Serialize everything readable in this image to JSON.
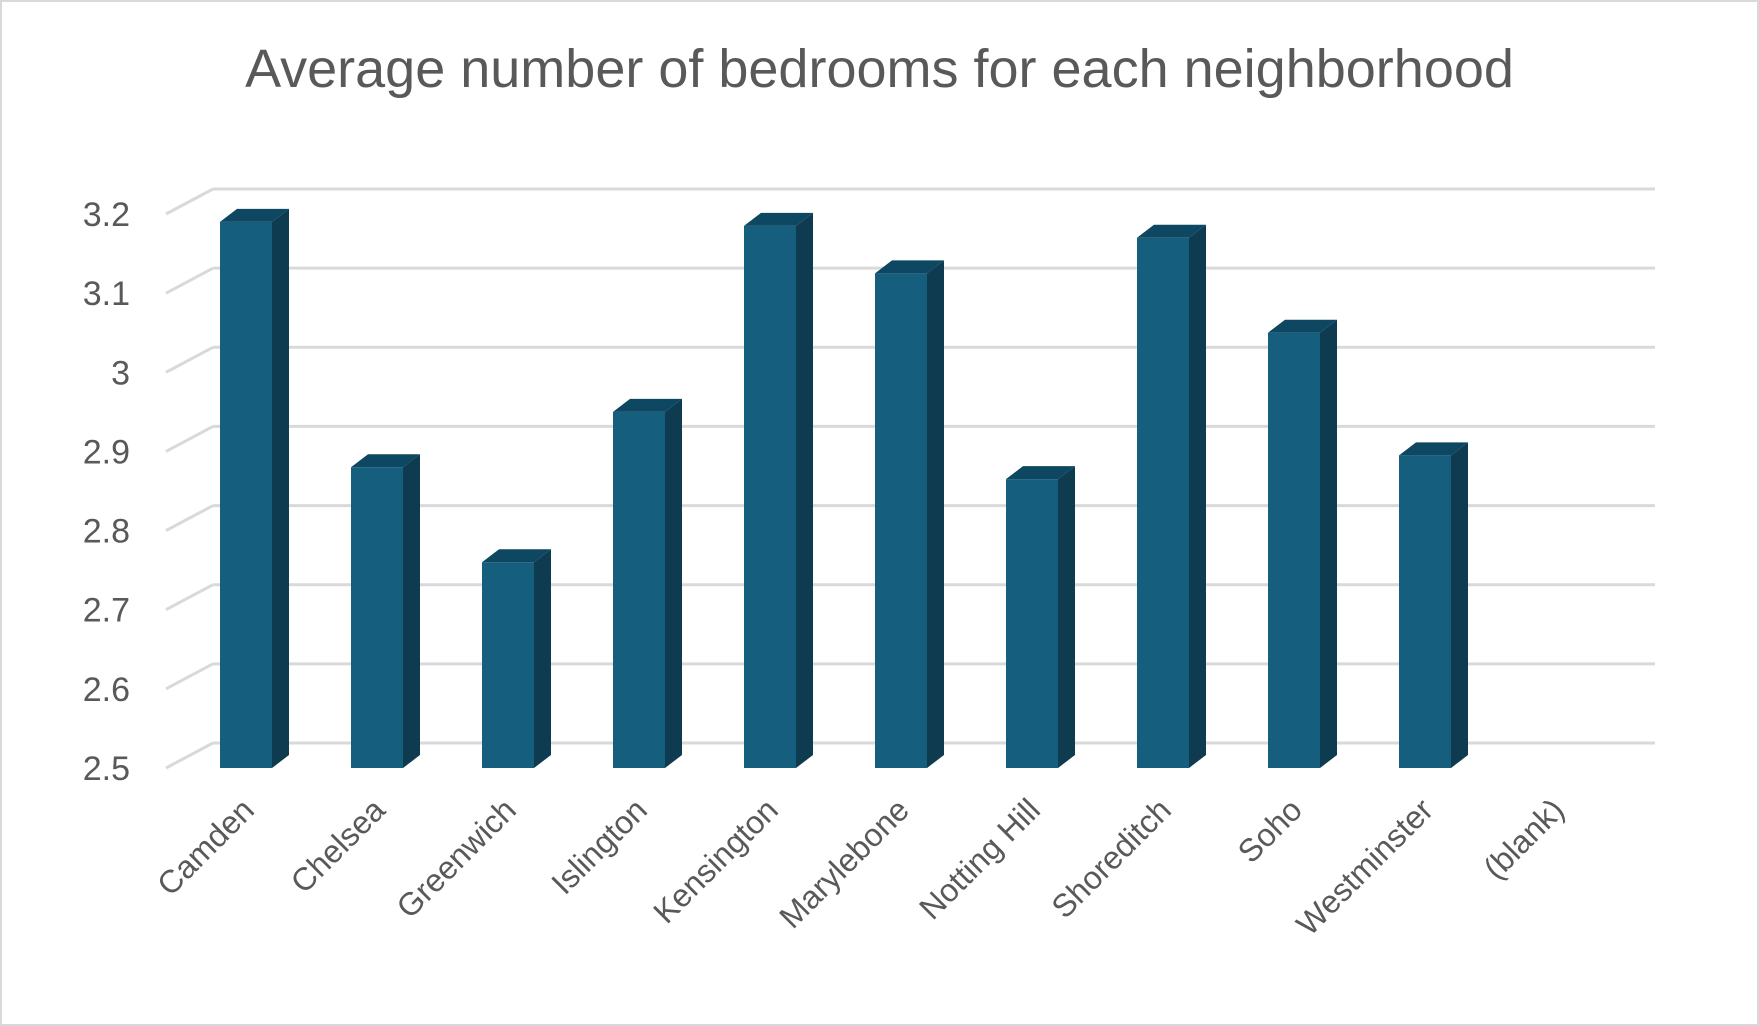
{
  "chart_data": {
    "type": "bar",
    "title": "Average number of bedrooms for each neighborhood",
    "categories": [
      "Camden",
      "Chelsea",
      "Greenwich",
      "Islington",
      "Kensington",
      "Marylebone",
      "Notting Hill",
      "Shoreditch",
      "Soho",
      "Westminster",
      "(blank)"
    ],
    "values": [
      3.19,
      2.88,
      2.76,
      2.95,
      3.185,
      3.125,
      2.865,
      3.17,
      3.05,
      2.895,
      null
    ],
    "y_ticks": [
      "2.5",
      "2.6",
      "2.7",
      "2.8",
      "2.9",
      "3",
      "3.1",
      "3.2"
    ],
    "ylim": [
      2.5,
      3.2
    ],
    "grid": true,
    "legend": "none",
    "style": "3d-column",
    "colors": {
      "front": "#155e7d",
      "side": "#0f3b51",
      "top": "#0d4761",
      "grid": "#d9d9d9",
      "text": "#595959"
    }
  }
}
